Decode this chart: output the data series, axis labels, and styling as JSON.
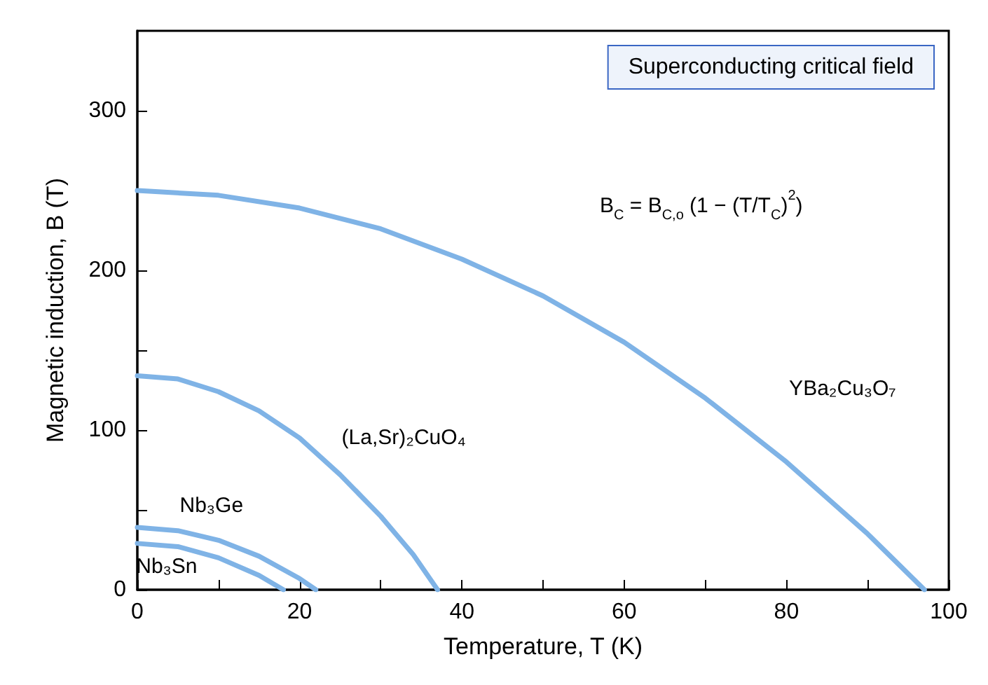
{
  "chart_data": {
    "type": "line",
    "xlabel": "Temperature, T (K)",
    "ylabel": "Magnetic induction, B (T)",
    "xlim": [
      0,
      100
    ],
    "ylim": [
      0,
      350
    ],
    "xticks": [
      0,
      {
        "value": 10,
        "label": null
      },
      20,
      {
        "value": 30,
        "label": null
      },
      40,
      {
        "value": 50,
        "label": null
      },
      60,
      {
        "value": 70,
        "label": null
      },
      80,
      {
        "value": 90,
        "label": null
      },
      100
    ],
    "yticks": [
      0,
      {
        "value": 50,
        "label": null
      },
      100,
      {
        "value": 150,
        "label": null
      },
      200,
      {
        "value": 250,
        "label": null
      },
      300
    ],
    "grid": false,
    "legend": false,
    "marker": "none",
    "line_style": "solid",
    "annotations": [
      "Superconducting critical field",
      "B$_{C}$ = B$_{C,o}$ (1 − (T/T$_{C}$)$^{2}$)"
    ],
    "series": [
      {
        "name": "YBa₂Cu₃O₇",
        "color": "#7fb3e6",
        "x": [
          0,
          10,
          20,
          30,
          40,
          50,
          60,
          70,
          80,
          90,
          97
        ],
        "values": [
          250,
          247,
          239,
          226,
          207,
          184,
          155,
          120,
          80,
          35,
          0
        ]
      },
      {
        "name": "(La,Sr)₂CuO₄",
        "color": "#7fb3e6",
        "x": [
          0,
          5,
          10,
          15,
          20,
          25,
          30,
          34,
          37
        ],
        "values": [
          134,
          132,
          124,
          112,
          95,
          72,
          46,
          22,
          0
        ]
      },
      {
        "name": "Nb₃Ge",
        "color": "#7fb3e6",
        "x": [
          0,
          5,
          10,
          15,
          20,
          22
        ],
        "values": [
          39,
          37,
          31,
          21,
          7,
          0
        ]
      },
      {
        "name": "Nb₃Sn",
        "color": "#7fb3e6",
        "x": [
          0,
          5,
          10,
          15,
          18
        ],
        "values": [
          29,
          27,
          20,
          9,
          0
        ]
      }
    ]
  }
}
